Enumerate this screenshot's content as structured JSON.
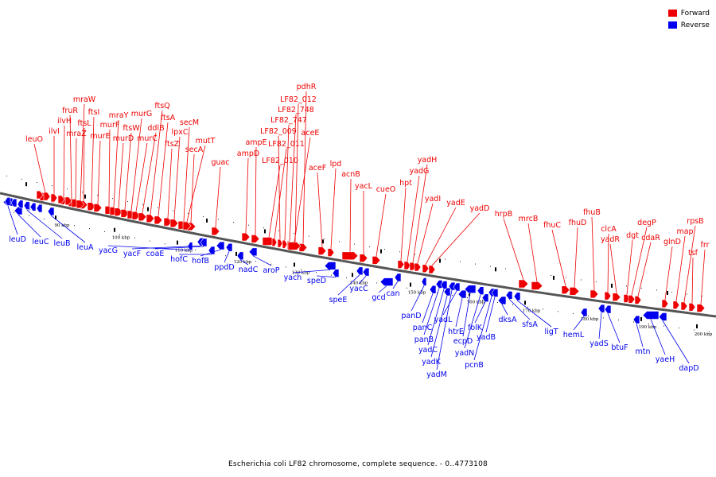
{
  "caption": "Escherichia coli LF82 chromosome, complete sequence. - 0..4773108",
  "legend": [
    {
      "label": "Forward",
      "color": "#ee0000"
    },
    {
      "label": "Reverse",
      "color": "#0000ee"
    }
  ],
  "colors": {
    "forward": "#ee0000",
    "reverse": "#0000ee",
    "backbone": "#555555",
    "tick": "#000000"
  },
  "axis_unit": "kbp",
  "axis_range_kbp": [
    80,
    205
  ],
  "scale_ticks": [
    "90 kbp",
    "100 kbp",
    "110 kbp",
    "120 kbp",
    "130 kbp",
    "140 kbp",
    "150 kbp",
    "160 kbp",
    "170 kbp",
    "180 kbp",
    "190 kbp",
    "200 kbp"
  ],
  "forward_genes": [
    "leuO",
    "ilvI",
    "ilvH",
    "fruR",
    "mraZ",
    "ftsL",
    "mraW",
    "ftsI",
    "murE",
    "murF",
    "mraY",
    "murD",
    "ftsW",
    "murG",
    "murC",
    "ddlB",
    "ftsQ",
    "ftsA",
    "ftsZ",
    "lpxC",
    "secM",
    "secA",
    "mutT",
    "guac",
    "ampD",
    "ampE",
    "LF82_010",
    "LF82_011",
    "LF82_009",
    "LF82_747",
    "LF82_748",
    "LF82_012",
    "pdhR",
    "aceE",
    "aceF",
    "lpd",
    "acnB",
    "yacL",
    "cueO",
    "hpt",
    "yadG",
    "yadH",
    "yadI",
    "yadE",
    "yadD",
    "hrpB",
    "mrcB",
    "fhuC",
    "fhuD",
    "fhuB",
    "clcA",
    "yadR",
    "dgt",
    "degP",
    "cdaR",
    "glnD",
    "map",
    "rpsB",
    "tsf",
    "frr"
  ],
  "reverse_genes": [
    "leuD",
    "leuC",
    "leuB",
    "leuA",
    "yacG",
    "yacF",
    "coaE",
    "hofC",
    "hofB",
    "ppdD",
    "nadC",
    "aroP",
    "yach",
    "speD",
    "speE",
    "yacC",
    "gcd",
    "can",
    "panD",
    "panC",
    "panB",
    "yadC",
    "yadK",
    "yadM",
    "yadL",
    "htrE",
    "ecpD",
    "yadN",
    "folK",
    "pcnB",
    "yadB",
    "dksA",
    "sfsA",
    "ligT",
    "hemL",
    "yadS",
    "btuF",
    "mtn",
    "yaeH",
    "dapD"
  ]
}
